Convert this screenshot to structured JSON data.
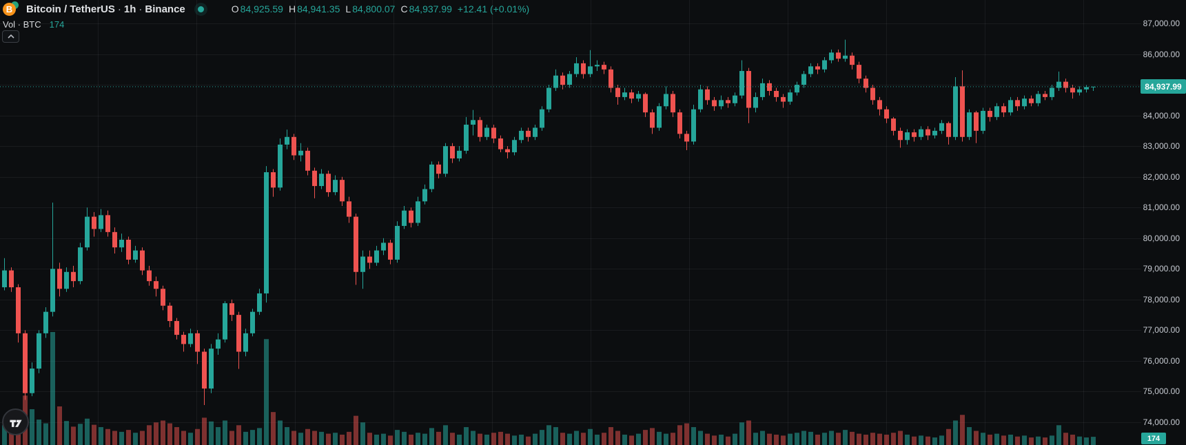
{
  "header": {
    "symbol": "Bitcoin / TetherUS",
    "sep1": "·",
    "interval": "1h",
    "sep2": "·",
    "exchange": "Binance",
    "btc_glyph": "B",
    "ohlc": {
      "o_label": "O",
      "o": "84,925.59",
      "h_label": "H",
      "h": "84,941.35",
      "l_label": "L",
      "l": "84,800.07",
      "c_label": "C",
      "c": "84,937.99",
      "change": "+12.41 (+0.01%)"
    },
    "indicator": {
      "label": "Vol · BTC",
      "value": "174"
    }
  },
  "axis": {
    "current_price": "84,937.99",
    "current_volume": "174"
  },
  "colors": {
    "up": "#26a69a",
    "down": "#ef5350",
    "accent": "#26a69a",
    "volume_up": "rgba(38,166,154,0.55)",
    "volume_down": "rgba(239,83,80,0.5)",
    "grid": "rgba(240,243,250,0.06)",
    "bitcoin_orange": "#f7931a"
  },
  "chart_data": {
    "type": "candlestick",
    "title": "Bitcoin / TetherUS 1h Binance",
    "legend_volume": "Vol · BTC 174",
    "last_price": 84937.99,
    "last_volume": 174,
    "grid": true,
    "y_axis": {
      "side": "right",
      "ticks": [
        {
          "price": 87000,
          "label": "87,000.00"
        },
        {
          "price": 86000,
          "label": "86,000.00"
        },
        {
          "price": 85000,
          "label": "85,000.00"
        },
        {
          "price": 84000,
          "label": "84,000.00"
        },
        {
          "price": 83000,
          "label": "83,000.00"
        },
        {
          "price": 82000,
          "label": "82,000.00"
        },
        {
          "price": 81000,
          "label": "81,000.00"
        },
        {
          "price": 80000,
          "label": "80,000.00"
        },
        {
          "price": 79000,
          "label": "79,000.00"
        },
        {
          "price": 78000,
          "label": "78,000.00"
        },
        {
          "price": 77000,
          "label": "77,000.00"
        },
        {
          "price": 76000,
          "label": "76,000.00"
        },
        {
          "price": 75000,
          "label": "75,000.00"
        },
        {
          "price": 74000,
          "label": "74,000.00"
        }
      ],
      "visible_range": [
        73250,
        87760
      ]
    },
    "candles_note": "arrays are [open, high, low, close, volume_btc]",
    "candles": [
      [
        78400,
        79350,
        78300,
        78950,
        420
      ],
      [
        78950,
        79050,
        78250,
        78400,
        380
      ],
      [
        78400,
        78500,
        76600,
        76900,
        520
      ],
      [
        76900,
        77000,
        74730,
        74950,
        1050
      ],
      [
        74950,
        75950,
        74850,
        75750,
        760
      ],
      [
        75750,
        77000,
        75600,
        76900,
        540
      ],
      [
        76900,
        77750,
        76750,
        77600,
        460
      ],
      [
        77600,
        81160,
        77450,
        79000,
        2400
      ],
      [
        79000,
        79200,
        78100,
        78350,
        820
      ],
      [
        78350,
        79050,
        78250,
        78900,
        510
      ],
      [
        78900,
        79100,
        78400,
        78600,
        390
      ],
      [
        78600,
        79850,
        78500,
        79700,
        450
      ],
      [
        79700,
        81000,
        79600,
        80700,
        560
      ],
      [
        80700,
        80850,
        80050,
        80300,
        430
      ],
      [
        80300,
        80950,
        80200,
        80750,
        380
      ],
      [
        80750,
        80900,
        80050,
        80200,
        340
      ],
      [
        80200,
        80350,
        79500,
        79700,
        300
      ],
      [
        79700,
        80150,
        79550,
        79950,
        280
      ],
      [
        79950,
        80050,
        79150,
        79300,
        320
      ],
      [
        79300,
        79750,
        79200,
        79600,
        260
      ],
      [
        79600,
        79700,
        78800,
        78950,
        300
      ],
      [
        78950,
        79100,
        78450,
        78600,
        420
      ],
      [
        78600,
        78750,
        78100,
        78350,
        480
      ],
      [
        78350,
        78450,
        77650,
        77800,
        520
      ],
      [
        77800,
        77900,
        77100,
        77300,
        460
      ],
      [
        77300,
        77400,
        76700,
        76850,
        380
      ],
      [
        76850,
        76950,
        76300,
        76550,
        300
      ],
      [
        76550,
        77050,
        76450,
        76900,
        260
      ],
      [
        76900,
        77000,
        75900,
        76300,
        340
      ],
      [
        76300,
        76400,
        74560,
        75100,
        580
      ],
      [
        75100,
        76550,
        74950,
        76400,
        500
      ],
      [
        76400,
        76900,
        76200,
        76700,
        380
      ],
      [
        76700,
        77950,
        76600,
        77880,
        520
      ],
      [
        77880,
        78000,
        77300,
        77500,
        300
      ],
      [
        77500,
        77600,
        75740,
        76300,
        420
      ],
      [
        76300,
        77050,
        76150,
        76900,
        280
      ],
      [
        76900,
        77700,
        76800,
        77600,
        320
      ],
      [
        77600,
        78350,
        77500,
        78200,
        360
      ],
      [
        78200,
        82350,
        77900,
        82150,
        2250
      ],
      [
        82150,
        82250,
        81350,
        81650,
        700
      ],
      [
        81650,
        83250,
        81550,
        83050,
        520
      ],
      [
        83050,
        83540,
        82900,
        83300,
        380
      ],
      [
        83300,
        83400,
        82550,
        82700,
        300
      ],
      [
        82700,
        83100,
        82500,
        82850,
        260
      ],
      [
        82850,
        82950,
        82050,
        82200,
        340
      ],
      [
        82200,
        82300,
        81300,
        81700,
        300
      ],
      [
        81700,
        82250,
        81600,
        82100,
        280
      ],
      [
        82100,
        82200,
        81350,
        81500,
        240
      ],
      [
        81500,
        82050,
        81400,
        81900,
        260
      ],
      [
        81900,
        82000,
        81050,
        81200,
        220
      ],
      [
        81200,
        81350,
        80500,
        80700,
        280
      ],
      [
        80700,
        80800,
        78480,
        78900,
        620
      ],
      [
        78900,
        79600,
        78350,
        79400,
        480
      ],
      [
        79400,
        79600,
        79000,
        79200,
        260
      ],
      [
        79200,
        79750,
        79100,
        79600,
        220
      ],
      [
        79600,
        80000,
        79450,
        79850,
        240
      ],
      [
        79850,
        79950,
        79150,
        79300,
        200
      ],
      [
        79300,
        80550,
        79200,
        80400,
        320
      ],
      [
        80400,
        81050,
        80300,
        80900,
        280
      ],
      [
        80900,
        81000,
        80350,
        80500,
        220
      ],
      [
        80500,
        81350,
        80400,
        81200,
        260
      ],
      [
        81200,
        81750,
        81100,
        81600,
        240
      ],
      [
        81600,
        82500,
        81500,
        82400,
        360
      ],
      [
        82400,
        82500,
        81950,
        82100,
        280
      ],
      [
        82100,
        83100,
        82000,
        83000,
        420
      ],
      [
        83000,
        83100,
        82450,
        82600,
        260
      ],
      [
        82600,
        83000,
        82500,
        82850,
        220
      ],
      [
        82850,
        83950,
        82750,
        83700,
        380
      ],
      [
        83700,
        84180,
        83350,
        83850,
        300
      ],
      [
        83850,
        83950,
        83150,
        83300,
        240
      ],
      [
        83300,
        83700,
        83200,
        83600,
        220
      ],
      [
        83600,
        83700,
        83100,
        83250,
        260
      ],
      [
        83250,
        83350,
        82800,
        82900,
        280
      ],
      [
        82900,
        83000,
        82600,
        82800,
        240
      ],
      [
        82800,
        83300,
        82700,
        83200,
        200
      ],
      [
        83200,
        83600,
        83100,
        83500,
        220
      ],
      [
        83500,
        83600,
        83150,
        83300,
        180
      ],
      [
        83300,
        83700,
        83200,
        83600,
        240
      ],
      [
        83600,
        84300,
        83500,
        84200,
        320
      ],
      [
        84200,
        85000,
        84100,
        84900,
        420
      ],
      [
        84900,
        85500,
        84800,
        85300,
        380
      ],
      [
        85300,
        85400,
        84850,
        85000,
        260
      ],
      [
        85000,
        85450,
        84900,
        85350,
        240
      ],
      [
        85350,
        85900,
        85250,
        85700,
        300
      ],
      [
        85700,
        85800,
        85200,
        85350,
        260
      ],
      [
        85350,
        86130,
        85250,
        85600,
        340
      ],
      [
        85600,
        85800,
        85450,
        85650,
        220
      ],
      [
        85650,
        85750,
        85350,
        85500,
        260
      ],
      [
        85500,
        85600,
        84750,
        84900,
        380
      ],
      [
        84900,
        85000,
        84350,
        84600,
        300
      ],
      [
        84600,
        84900,
        84500,
        84750,
        220
      ],
      [
        84750,
        84850,
        84400,
        84550,
        200
      ],
      [
        84550,
        84800,
        84450,
        84700,
        240
      ],
      [
        84700,
        84750,
        83950,
        84100,
        320
      ],
      [
        84100,
        84200,
        83400,
        83600,
        360
      ],
      [
        83600,
        84400,
        83500,
        84300,
        280
      ],
      [
        84300,
        84950,
        84200,
        84700,
        240
      ],
      [
        84700,
        84800,
        83950,
        84100,
        260
      ],
      [
        84100,
        84200,
        83250,
        83400,
        420
      ],
      [
        83400,
        83500,
        82870,
        83150,
        460
      ],
      [
        83150,
        84350,
        83050,
        84200,
        380
      ],
      [
        84200,
        85000,
        84100,
        84850,
        300
      ],
      [
        84850,
        84950,
        84350,
        84500,
        240
      ],
      [
        84500,
        84600,
        84150,
        84300,
        200
      ],
      [
        84300,
        84650,
        84200,
        84500,
        220
      ],
      [
        84500,
        84600,
        84250,
        84400,
        180
      ],
      [
        84400,
        84750,
        84300,
        84650,
        240
      ],
      [
        84650,
        85800,
        84550,
        85450,
        480
      ],
      [
        85450,
        85550,
        83750,
        84250,
        520
      ],
      [
        84250,
        84750,
        84100,
        84600,
        260
      ],
      [
        84600,
        85200,
        84500,
        85050,
        300
      ],
      [
        85050,
        85150,
        84650,
        84800,
        240
      ],
      [
        84800,
        84900,
        84450,
        84600,
        220
      ],
      [
        84600,
        84700,
        84250,
        84450,
        200
      ],
      [
        84450,
        84850,
        84350,
        84750,
        240
      ],
      [
        84750,
        85100,
        84650,
        85000,
        260
      ],
      [
        85000,
        85450,
        84900,
        85350,
        300
      ],
      [
        85350,
        85700,
        85250,
        85600,
        280
      ],
      [
        85600,
        85700,
        85350,
        85500,
        220
      ],
      [
        85500,
        85900,
        85400,
        85800,
        260
      ],
      [
        85800,
        86150,
        85700,
        86050,
        300
      ],
      [
        86050,
        86150,
        85750,
        85850,
        260
      ],
      [
        85850,
        86470,
        85750,
        85950,
        320
      ],
      [
        85950,
        86050,
        85500,
        85650,
        280
      ],
      [
        85650,
        85750,
        85050,
        85200,
        240
      ],
      [
        85200,
        85300,
        84750,
        84900,
        220
      ],
      [
        84900,
        85000,
        84350,
        84500,
        260
      ],
      [
        84500,
        84600,
        84000,
        84200,
        240
      ],
      [
        84200,
        84300,
        83750,
        83900,
        220
      ],
      [
        83900,
        83950,
        83350,
        83500,
        260
      ],
      [
        83500,
        83600,
        82950,
        83200,
        300
      ],
      [
        83200,
        83550,
        83050,
        83450,
        220
      ],
      [
        83450,
        83550,
        83150,
        83300,
        180
      ],
      [
        83300,
        83650,
        83200,
        83550,
        200
      ],
      [
        83550,
        83650,
        83200,
        83350,
        180
      ],
      [
        83350,
        83600,
        83250,
        83500,
        160
      ],
      [
        83500,
        83850,
        83400,
        83750,
        200
      ],
      [
        83750,
        83800,
        83050,
        83300,
        340
      ],
      [
        83300,
        85250,
        83200,
        84950,
        520
      ],
      [
        84950,
        85470,
        83150,
        83300,
        640
      ],
      [
        83300,
        84200,
        83200,
        84100,
        380
      ],
      [
        84100,
        84150,
        83100,
        83500,
        300
      ],
      [
        83500,
        84250,
        83400,
        84150,
        260
      ],
      [
        84150,
        84250,
        83800,
        83950,
        220
      ],
      [
        83950,
        84400,
        83850,
        84300,
        240
      ],
      [
        84300,
        84400,
        83950,
        84100,
        200
      ],
      [
        84100,
        84600,
        84000,
        84500,
        220
      ],
      [
        84500,
        84600,
        84150,
        84300,
        180
      ],
      [
        84300,
        84650,
        84200,
        84550,
        200
      ],
      [
        84550,
        84650,
        84300,
        84400,
        160
      ],
      [
        84400,
        84800,
        84300,
        84700,
        180
      ],
      [
        84700,
        84800,
        84500,
        84600,
        160
      ],
      [
        84600,
        85000,
        84500,
        84900,
        200
      ],
      [
        84900,
        85430,
        84800,
        85100,
        420
      ],
      [
        85100,
        85200,
        84750,
        84900,
        260
      ],
      [
        84900,
        85000,
        84550,
        84750,
        220
      ],
      [
        84750,
        84950,
        84650,
        84850,
        180
      ],
      [
        84850,
        84990,
        84750,
        84925.59,
        160
      ],
      [
        84925.59,
        84941.35,
        84800.07,
        84937.99,
        174
      ]
    ]
  }
}
